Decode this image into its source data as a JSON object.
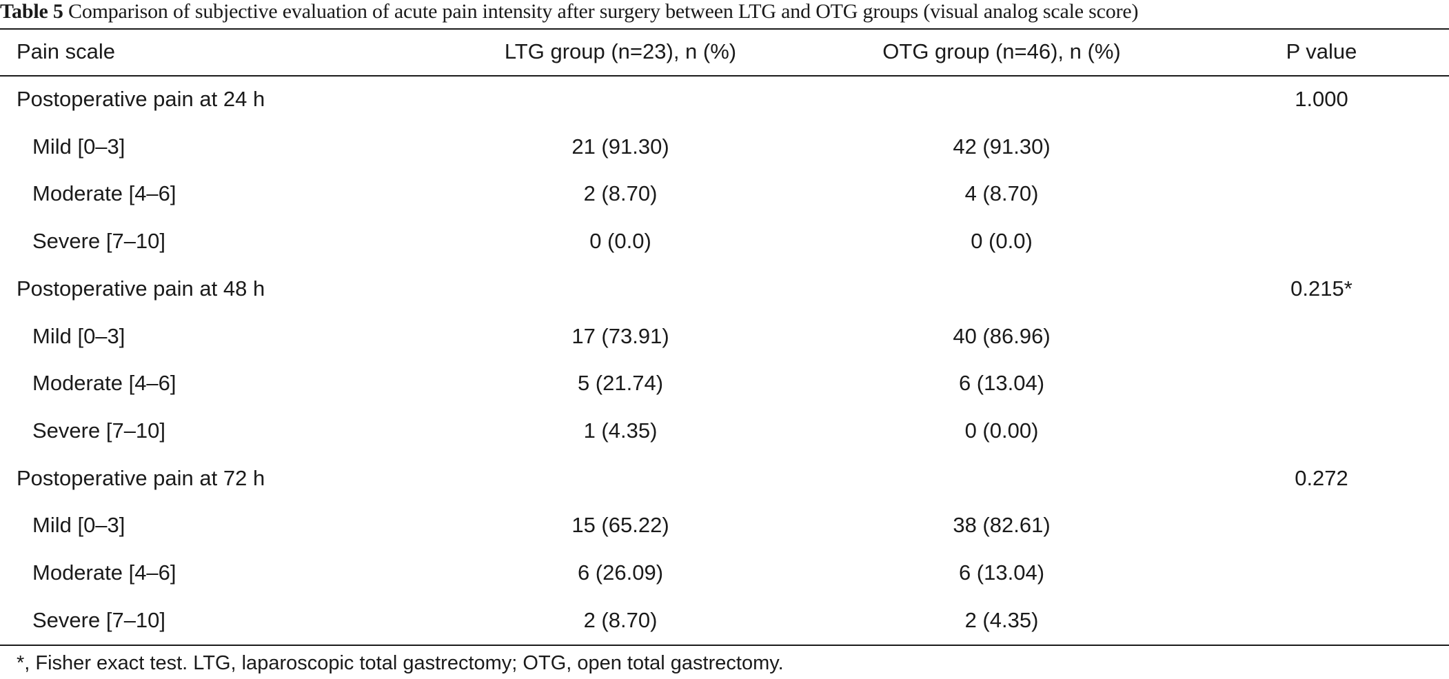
{
  "caption": {
    "label": "Table 5",
    "text": "Comparison of subjective evaluation of acute pain intensity after surgery between LTG and OTG groups (visual analog scale score)"
  },
  "table": {
    "headers": [
      "Pain scale",
      "LTG group (n=23), n (%)",
      "OTG group (n=46), n (%)",
      "P value"
    ],
    "rows": [
      {
        "label": "Postoperative pain at 24 h",
        "ltg": "",
        "otg": "",
        "p": "1.000",
        "indent": false
      },
      {
        "label": "Mild [0–3]",
        "ltg": "21 (91.30)",
        "otg": "42 (91.30)",
        "p": "",
        "indent": true
      },
      {
        "label": "Moderate [4–6]",
        "ltg": "2 (8.70)",
        "otg": "4 (8.70)",
        "p": "",
        "indent": true
      },
      {
        "label": "Severe [7–10]",
        "ltg": "0 (0.0)",
        "otg": "0 (0.0)",
        "p": "",
        "indent": true
      },
      {
        "label": "Postoperative pain at 48 h",
        "ltg": "",
        "otg": "",
        "p": "0.215*",
        "indent": false
      },
      {
        "label": "Mild [0–3]",
        "ltg": "17 (73.91)",
        "otg": "40 (86.96)",
        "p": "",
        "indent": true
      },
      {
        "label": "Moderate [4–6]",
        "ltg": "5 (21.74)",
        "otg": "6 (13.04)",
        "p": "",
        "indent": true
      },
      {
        "label": "Severe [7–10]",
        "ltg": "1 (4.35)",
        "otg": "0 (0.00)",
        "p": "",
        "indent": true
      },
      {
        "label": "Postoperative pain at 72 h",
        "ltg": "",
        "otg": "",
        "p": "0.272",
        "indent": false
      },
      {
        "label": "Mild [0–3]",
        "ltg": "15 (65.22)",
        "otg": "38 (82.61)",
        "p": "",
        "indent": true
      },
      {
        "label": "Moderate [4–6]",
        "ltg": "6 (26.09)",
        "otg": "6 (13.04)",
        "p": "",
        "indent": true
      },
      {
        "label": "Severe [7–10]",
        "ltg": "2 (8.70)",
        "otg": "2 (4.35)",
        "p": "",
        "indent": true
      }
    ]
  },
  "footnote": "*, Fisher exact test. LTG, laparoscopic total gastrectomy; OTG, open total gastrectomy."
}
